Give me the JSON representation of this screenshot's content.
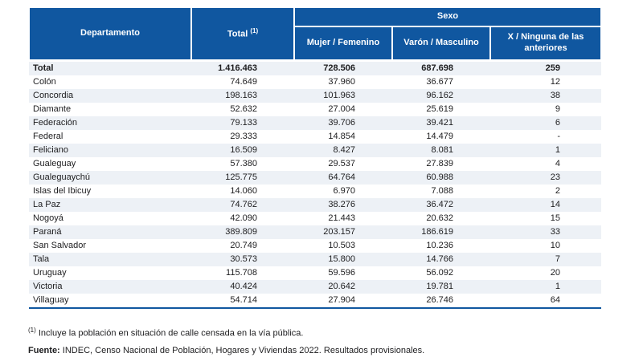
{
  "colors": {
    "header_bg": "#1057A0",
    "bottom_rule": "#1057A0",
    "row_stripe": "#EDF1F6",
    "text": "#1d1d1f"
  },
  "table": {
    "header": {
      "departamento": "Departamento",
      "total": "Total",
      "total_sup": "(1)",
      "sexo": "Sexo",
      "mujer": "Mujer / Femenino",
      "varon": "Varón / Masculino",
      "x_ninguna": "X / Ninguna de las anteriores"
    },
    "rows": [
      {
        "departamento": "Total",
        "total": "1.416.463",
        "mujer": "728.506",
        "varon": "687.698",
        "x": "259",
        "bold": true
      },
      {
        "departamento": "Colón",
        "total": "74.649",
        "mujer": "37.960",
        "varon": "36.677",
        "x": "12"
      },
      {
        "departamento": "Concordia",
        "total": "198.163",
        "mujer": "101.963",
        "varon": "96.162",
        "x": "38"
      },
      {
        "departamento": "Diamante",
        "total": "52.632",
        "mujer": "27.004",
        "varon": "25.619",
        "x": "9"
      },
      {
        "departamento": "Federación",
        "total": "79.133",
        "mujer": "39.706",
        "varon": "39.421",
        "x": "6"
      },
      {
        "departamento": "Federal",
        "total": "29.333",
        "mujer": "14.854",
        "varon": "14.479",
        "x": "-"
      },
      {
        "departamento": "Feliciano",
        "total": "16.509",
        "mujer": "8.427",
        "varon": "8.081",
        "x": "1"
      },
      {
        "departamento": "Gualeguay",
        "total": "57.380",
        "mujer": "29.537",
        "varon": "27.839",
        "x": "4"
      },
      {
        "departamento": "Gualeguaychú",
        "total": "125.775",
        "mujer": "64.764",
        "varon": "60.988",
        "x": "23"
      },
      {
        "departamento": "Islas del Ibicuy",
        "total": "14.060",
        "mujer": "6.970",
        "varon": "7.088",
        "x": "2"
      },
      {
        "departamento": "La Paz",
        "total": "74.762",
        "mujer": "38.276",
        "varon": "36.472",
        "x": "14"
      },
      {
        "departamento": "Nogoyá",
        "total": "42.090",
        "mujer": "21.443",
        "varon": "20.632",
        "x": "15"
      },
      {
        "departamento": "Paraná",
        "total": "389.809",
        "mujer": "203.157",
        "varon": "186.619",
        "x": "33"
      },
      {
        "departamento": "San Salvador",
        "total": "20.749",
        "mujer": "10.503",
        "varon": "10.236",
        "x": "10"
      },
      {
        "departamento": "Tala",
        "total": "30.573",
        "mujer": "15.800",
        "varon": "14.766",
        "x": "7"
      },
      {
        "departamento": "Uruguay",
        "total": "115.708",
        "mujer": "59.596",
        "varon": "56.092",
        "x": "20"
      },
      {
        "departamento": "Victoria",
        "total": "40.424",
        "mujer": "20.642",
        "varon": "19.781",
        "x": "1"
      },
      {
        "departamento": "Villaguay",
        "total": "54.714",
        "mujer": "27.904",
        "varon": "26.746",
        "x": "64"
      }
    ]
  },
  "footnote": {
    "sup": "(1)",
    "text": " Incluye la población en situación de calle censada en la vía pública."
  },
  "source": {
    "label": "Fuente:",
    "text": " INDEC, Censo Nacional de Población, Hogares y Viviendas 2022. Resultados provisionales."
  }
}
